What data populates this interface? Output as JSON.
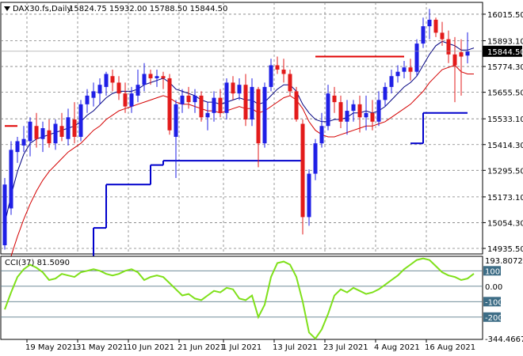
{
  "header": {
    "symbol": "DAX30.fs,Daily",
    "ohlc": "15824.75 15932.00 15788.50 15844.50"
  },
  "indicator_header": "CCI(37) 81.5090",
  "colors": {
    "bull": "#1f1fe6",
    "bear": "#e31b1b",
    "ma_fast": "#000080",
    "ma_slow": "#d40000",
    "stop_blue": "#0000cc",
    "stop_red": "#e00000",
    "cci": "#7fe01a",
    "grid": "#7f7f7f",
    "current_price_box": "#000000"
  },
  "chart_data": [
    {
      "type": "candlestick",
      "title": "DAX30.fs,Daily",
      "x_tick_labels": [
        "19 May 2021",
        "31 May 2021",
        "10 Jun 2021",
        "21 Jun 2021",
        "1 Jul 2021",
        "13 Jul 2021",
        "23 Jul 2021",
        "4 Aug 2021",
        "16 Aug 2021"
      ],
      "y_tick_labels": [
        "16015.50",
        "15893.10",
        "15774.30",
        "15655.50",
        "15533.10",
        "15414.30",
        "15295.50",
        "15173.10",
        "15054.30",
        "14935.50"
      ],
      "ylim": [
        14910,
        16070
      ],
      "current_price": "15844.50",
      "candles": [
        {
          "date": "2021-05-13",
          "o": 14950,
          "h": 15260,
          "l": 14930,
          "c": 15230
        },
        {
          "date": "2021-05-14",
          "o": 15120,
          "h": 15430,
          "l": 15090,
          "c": 15390
        },
        {
          "date": "2021-05-17",
          "o": 15380,
          "h": 15450,
          "l": 15330,
          "c": 15430
        },
        {
          "date": "2021-05-18",
          "o": 15410,
          "h": 15500,
          "l": 15380,
          "c": 15440
        },
        {
          "date": "2021-05-19",
          "o": 15430,
          "h": 15540,
          "l": 15360,
          "c": 15520
        },
        {
          "date": "2021-05-20",
          "o": 15500,
          "h": 15560,
          "l": 15400,
          "c": 15440
        },
        {
          "date": "2021-05-21",
          "o": 15440,
          "h": 15520,
          "l": 15380,
          "c": 15490
        },
        {
          "date": "2021-05-24",
          "o": 15480,
          "h": 15530,
          "l": 15400,
          "c": 15420
        },
        {
          "date": "2021-05-25",
          "o": 15420,
          "h": 15530,
          "l": 15390,
          "c": 15510
        },
        {
          "date": "2021-05-26",
          "o": 15500,
          "h": 15560,
          "l": 15430,
          "c": 15450
        },
        {
          "date": "2021-05-27",
          "o": 15440,
          "h": 15580,
          "l": 15410,
          "c": 15540
        },
        {
          "date": "2021-05-28",
          "o": 15530,
          "h": 15610,
          "l": 15420,
          "c": 15450
        },
        {
          "date": "2021-05-31",
          "o": 15450,
          "h": 15620,
          "l": 15430,
          "c": 15600
        },
        {
          "date": "2021-06-01",
          "o": 15600,
          "h": 15670,
          "l": 15560,
          "c": 15640
        },
        {
          "date": "2021-06-02",
          "o": 15630,
          "h": 15700,
          "l": 15590,
          "c": 15660
        },
        {
          "date": "2021-06-03",
          "o": 15650,
          "h": 15720,
          "l": 15600,
          "c": 15690
        },
        {
          "date": "2021-06-04",
          "o": 15680,
          "h": 15750,
          "l": 15640,
          "c": 15740
        },
        {
          "date": "2021-06-07",
          "o": 15730,
          "h": 15760,
          "l": 15660,
          "c": 15700
        },
        {
          "date": "2021-06-08",
          "o": 15700,
          "h": 15730,
          "l": 15620,
          "c": 15650
        },
        {
          "date": "2021-06-09",
          "o": 15650,
          "h": 15700,
          "l": 15560,
          "c": 15590
        },
        {
          "date": "2021-06-10",
          "o": 15590,
          "h": 15680,
          "l": 15560,
          "c": 15650
        },
        {
          "date": "2021-06-11",
          "o": 15640,
          "h": 15760,
          "l": 15610,
          "c": 15690
        },
        {
          "date": "2021-06-14",
          "o": 15690,
          "h": 15790,
          "l": 15660,
          "c": 15740
        },
        {
          "date": "2021-06-15",
          "o": 15740,
          "h": 15760,
          "l": 15690,
          "c": 15720
        },
        {
          "date": "2021-06-16",
          "o": 15720,
          "h": 15760,
          "l": 15680,
          "c": 15730
        },
        {
          "date": "2021-06-17",
          "o": 15730,
          "h": 15750,
          "l": 15670,
          "c": 15720
        },
        {
          "date": "2021-06-18",
          "o": 15720,
          "h": 15740,
          "l": 15460,
          "c": 15480
        },
        {
          "date": "2021-06-21",
          "o": 15450,
          "h": 15620,
          "l": 15260,
          "c": 15600
        },
        {
          "date": "2021-06-22",
          "o": 15600,
          "h": 15670,
          "l": 15560,
          "c": 15640
        },
        {
          "date": "2021-06-23",
          "o": 15640,
          "h": 15680,
          "l": 15580,
          "c": 15610
        },
        {
          "date": "2021-06-24",
          "o": 15610,
          "h": 15670,
          "l": 15560,
          "c": 15640
        },
        {
          "date": "2021-06-25",
          "o": 15640,
          "h": 15660,
          "l": 15520,
          "c": 15540
        },
        {
          "date": "2021-06-28",
          "o": 15540,
          "h": 15610,
          "l": 15480,
          "c": 15560
        },
        {
          "date": "2021-06-29",
          "o": 15560,
          "h": 15660,
          "l": 15520,
          "c": 15630
        },
        {
          "date": "2021-06-30",
          "o": 15630,
          "h": 15670,
          "l": 15540,
          "c": 15560
        },
        {
          "date": "2021-07-01",
          "o": 15560,
          "h": 15720,
          "l": 15530,
          "c": 15700
        },
        {
          "date": "2021-07-02",
          "o": 15700,
          "h": 15730,
          "l": 15620,
          "c": 15650
        },
        {
          "date": "2021-07-05",
          "o": 15650,
          "h": 15720,
          "l": 15620,
          "c": 15690
        },
        {
          "date": "2021-07-06",
          "o": 15690,
          "h": 15740,
          "l": 15500,
          "c": 15530
        },
        {
          "date": "2021-07-07",
          "o": 15530,
          "h": 15720,
          "l": 15500,
          "c": 15680
        },
        {
          "date": "2021-07-08",
          "o": 15670,
          "h": 15680,
          "l": 15310,
          "c": 15420
        },
        {
          "date": "2021-07-09",
          "o": 15420,
          "h": 15700,
          "l": 15400,
          "c": 15680
        },
        {
          "date": "2021-07-12",
          "o": 15680,
          "h": 15810,
          "l": 15660,
          "c": 15780
        },
        {
          "date": "2021-07-13",
          "o": 15780,
          "h": 15820,
          "l": 15740,
          "c": 15760
        },
        {
          "date": "2021-07-14",
          "o": 15760,
          "h": 15810,
          "l": 15700,
          "c": 15740
        },
        {
          "date": "2021-07-15",
          "o": 15740,
          "h": 15760,
          "l": 15640,
          "c": 15660
        },
        {
          "date": "2021-07-16",
          "o": 15660,
          "h": 15680,
          "l": 15520,
          "c": 15530
        },
        {
          "date": "2021-07-19",
          "o": 15510,
          "h": 15530,
          "l": 15000,
          "c": 15080
        },
        {
          "date": "2021-07-20",
          "o": 15080,
          "h": 15300,
          "l": 15040,
          "c": 15280
        },
        {
          "date": "2021-07-21",
          "o": 15280,
          "h": 15440,
          "l": 15250,
          "c": 15420
        },
        {
          "date": "2021-07-22",
          "o": 15420,
          "h": 15560,
          "l": 15400,
          "c": 15500
        },
        {
          "date": "2021-07-23",
          "o": 15500,
          "h": 15690,
          "l": 15480,
          "c": 15650
        },
        {
          "date": "2021-07-26",
          "o": 15640,
          "h": 15680,
          "l": 15560,
          "c": 15610
        },
        {
          "date": "2021-07-27",
          "o": 15610,
          "h": 15640,
          "l": 15490,
          "c": 15520
        },
        {
          "date": "2021-07-28",
          "o": 15520,
          "h": 15620,
          "l": 15460,
          "c": 15570
        },
        {
          "date": "2021-07-29",
          "o": 15570,
          "h": 15620,
          "l": 15520,
          "c": 15600
        },
        {
          "date": "2021-07-30",
          "o": 15600,
          "h": 15640,
          "l": 15470,
          "c": 15540
        },
        {
          "date": "2021-08-02",
          "o": 15540,
          "h": 15640,
          "l": 15480,
          "c": 15560
        },
        {
          "date": "2021-08-03",
          "o": 15560,
          "h": 15620,
          "l": 15480,
          "c": 15520
        },
        {
          "date": "2021-08-04",
          "o": 15520,
          "h": 15660,
          "l": 15500,
          "c": 15620
        },
        {
          "date": "2021-08-05",
          "o": 15620,
          "h": 15700,
          "l": 15590,
          "c": 15680
        },
        {
          "date": "2021-08-06",
          "o": 15680,
          "h": 15760,
          "l": 15650,
          "c": 15730
        },
        {
          "date": "2021-08-09",
          "o": 15730,
          "h": 15780,
          "l": 15700,
          "c": 15750
        },
        {
          "date": "2021-08-10",
          "o": 15750,
          "h": 15800,
          "l": 15720,
          "c": 15770
        },
        {
          "date": "2021-08-11",
          "o": 15770,
          "h": 15810,
          "l": 15710,
          "c": 15750
        },
        {
          "date": "2021-08-12",
          "o": 15750,
          "h": 15900,
          "l": 15730,
          "c": 15880
        },
        {
          "date": "2021-08-13",
          "o": 15880,
          "h": 16000,
          "l": 15860,
          "c": 15960
        },
        {
          "date": "2021-08-16",
          "o": 15960,
          "h": 16040,
          "l": 15900,
          "c": 15990
        },
        {
          "date": "2021-08-17",
          "o": 15990,
          "h": 16000,
          "l": 15910,
          "c": 15930
        },
        {
          "date": "2021-08-18",
          "o": 15930,
          "h": 15980,
          "l": 15870,
          "c": 15900
        },
        {
          "date": "2021-08-19",
          "o": 15900,
          "h": 15940,
          "l": 15790,
          "c": 15830
        },
        {
          "date": "2021-08-20",
          "o": 15830,
          "h": 15910,
          "l": 15610,
          "c": 15780
        },
        {
          "date": "2021-08-23",
          "o": 15840,
          "h": 15900,
          "l": 15640,
          "c": 15820
        },
        {
          "date": "2021-08-24",
          "o": 15824.75,
          "h": 15932,
          "l": 15788.5,
          "c": 15844.5
        }
      ],
      "ma_fast": [
        15050,
        15180,
        15290,
        15370,
        15420,
        15440,
        15450,
        15460,
        15470,
        15480,
        15490,
        15500,
        15520,
        15550,
        15570,
        15600,
        15630,
        15650,
        15660,
        15660,
        15660,
        15670,
        15690,
        15700,
        15710,
        15720,
        15700,
        15670,
        15660,
        15650,
        15640,
        15620,
        15610,
        15610,
        15600,
        15610,
        15620,
        15630,
        15620,
        15620,
        15600,
        15610,
        15640,
        15670,
        15690,
        15690,
        15660,
        15600,
        15560,
        15530,
        15520,
        15520,
        15530,
        15530,
        15540,
        15560,
        15560,
        15570,
        15560,
        15570,
        15590,
        15620,
        15650,
        15680,
        15700,
        15730,
        15780,
        15830,
        15870,
        15890,
        15880,
        15870,
        15850,
        15850,
        15860
      ],
      "ma_slow": [
        14800,
        14900,
        14990,
        15070,
        15140,
        15200,
        15250,
        15290,
        15320,
        15350,
        15380,
        15400,
        15420,
        15450,
        15480,
        15500,
        15530,
        15550,
        15570,
        15580,
        15590,
        15600,
        15610,
        15620,
        15630,
        15640,
        15630,
        15610,
        15600,
        15600,
        15590,
        15580,
        15570,
        15570,
        15560,
        15570,
        15580,
        15590,
        15580,
        15580,
        15560,
        15570,
        15590,
        15610,
        15630,
        15640,
        15620,
        15580,
        15520,
        15480,
        15460,
        15450,
        15450,
        15460,
        15470,
        15480,
        15490,
        15500,
        15500,
        15510,
        15520,
        15540,
        15560,
        15580,
        15600,
        15630,
        15660,
        15700,
        15730,
        15760,
        15770,
        15780,
        15750,
        15740,
        15740
      ],
      "stop_line_blue": [
        {
          "from": "2021-05-27",
          "to": "2021-06-02",
          "y": 14870
        },
        {
          "from": "2021-06-02",
          "to": "2021-06-04",
          "y": 15030
        },
        {
          "from": "2021-06-04",
          "to": "2021-06-15",
          "y": 15230
        },
        {
          "from": "2021-06-15",
          "to": "2021-06-17",
          "y": 15320
        },
        {
          "from": "2021-06-17",
          "to": "2021-07-19",
          "y": 15340
        },
        {
          "from": "2021-08-11",
          "to": "2021-08-13",
          "y": 15420
        },
        {
          "from": "2021-08-13",
          "to": "2021-08-24",
          "y": 15560
        }
      ],
      "stop_line_red": [
        {
          "from": "2021-05-13",
          "to": "2021-05-17",
          "y": 15500
        },
        {
          "from": "2021-07-21",
          "to": "2021-08-10",
          "y": 15820
        }
      ]
    },
    {
      "type": "line",
      "title": "CCI(37) 81.5090",
      "y_tick_labels": [
        "193.8072",
        "100",
        "0.00",
        "-100",
        "-200",
        "-344.4667"
      ],
      "ylim": [
        -344.4667,
        193.8072
      ],
      "levels": [
        100,
        0,
        -100,
        -200
      ],
      "values": [
        -150,
        -40,
        60,
        110,
        140,
        120,
        90,
        40,
        50,
        80,
        70,
        60,
        90,
        100,
        110,
        100,
        80,
        70,
        80,
        100,
        110,
        90,
        40,
        60,
        70,
        60,
        20,
        -20,
        -60,
        -50,
        -80,
        -90,
        -60,
        -30,
        -40,
        -10,
        -20,
        -80,
        -90,
        -60,
        -200,
        -120,
        60,
        150,
        160,
        140,
        60,
        -100,
        -300,
        -340,
        -280,
        -180,
        -60,
        -20,
        -40,
        -10,
        -30,
        -50,
        -40,
        -20,
        10,
        40,
        70,
        110,
        140,
        170,
        180,
        170,
        130,
        90,
        70,
        60,
        40,
        50,
        81.509
      ]
    }
  ]
}
